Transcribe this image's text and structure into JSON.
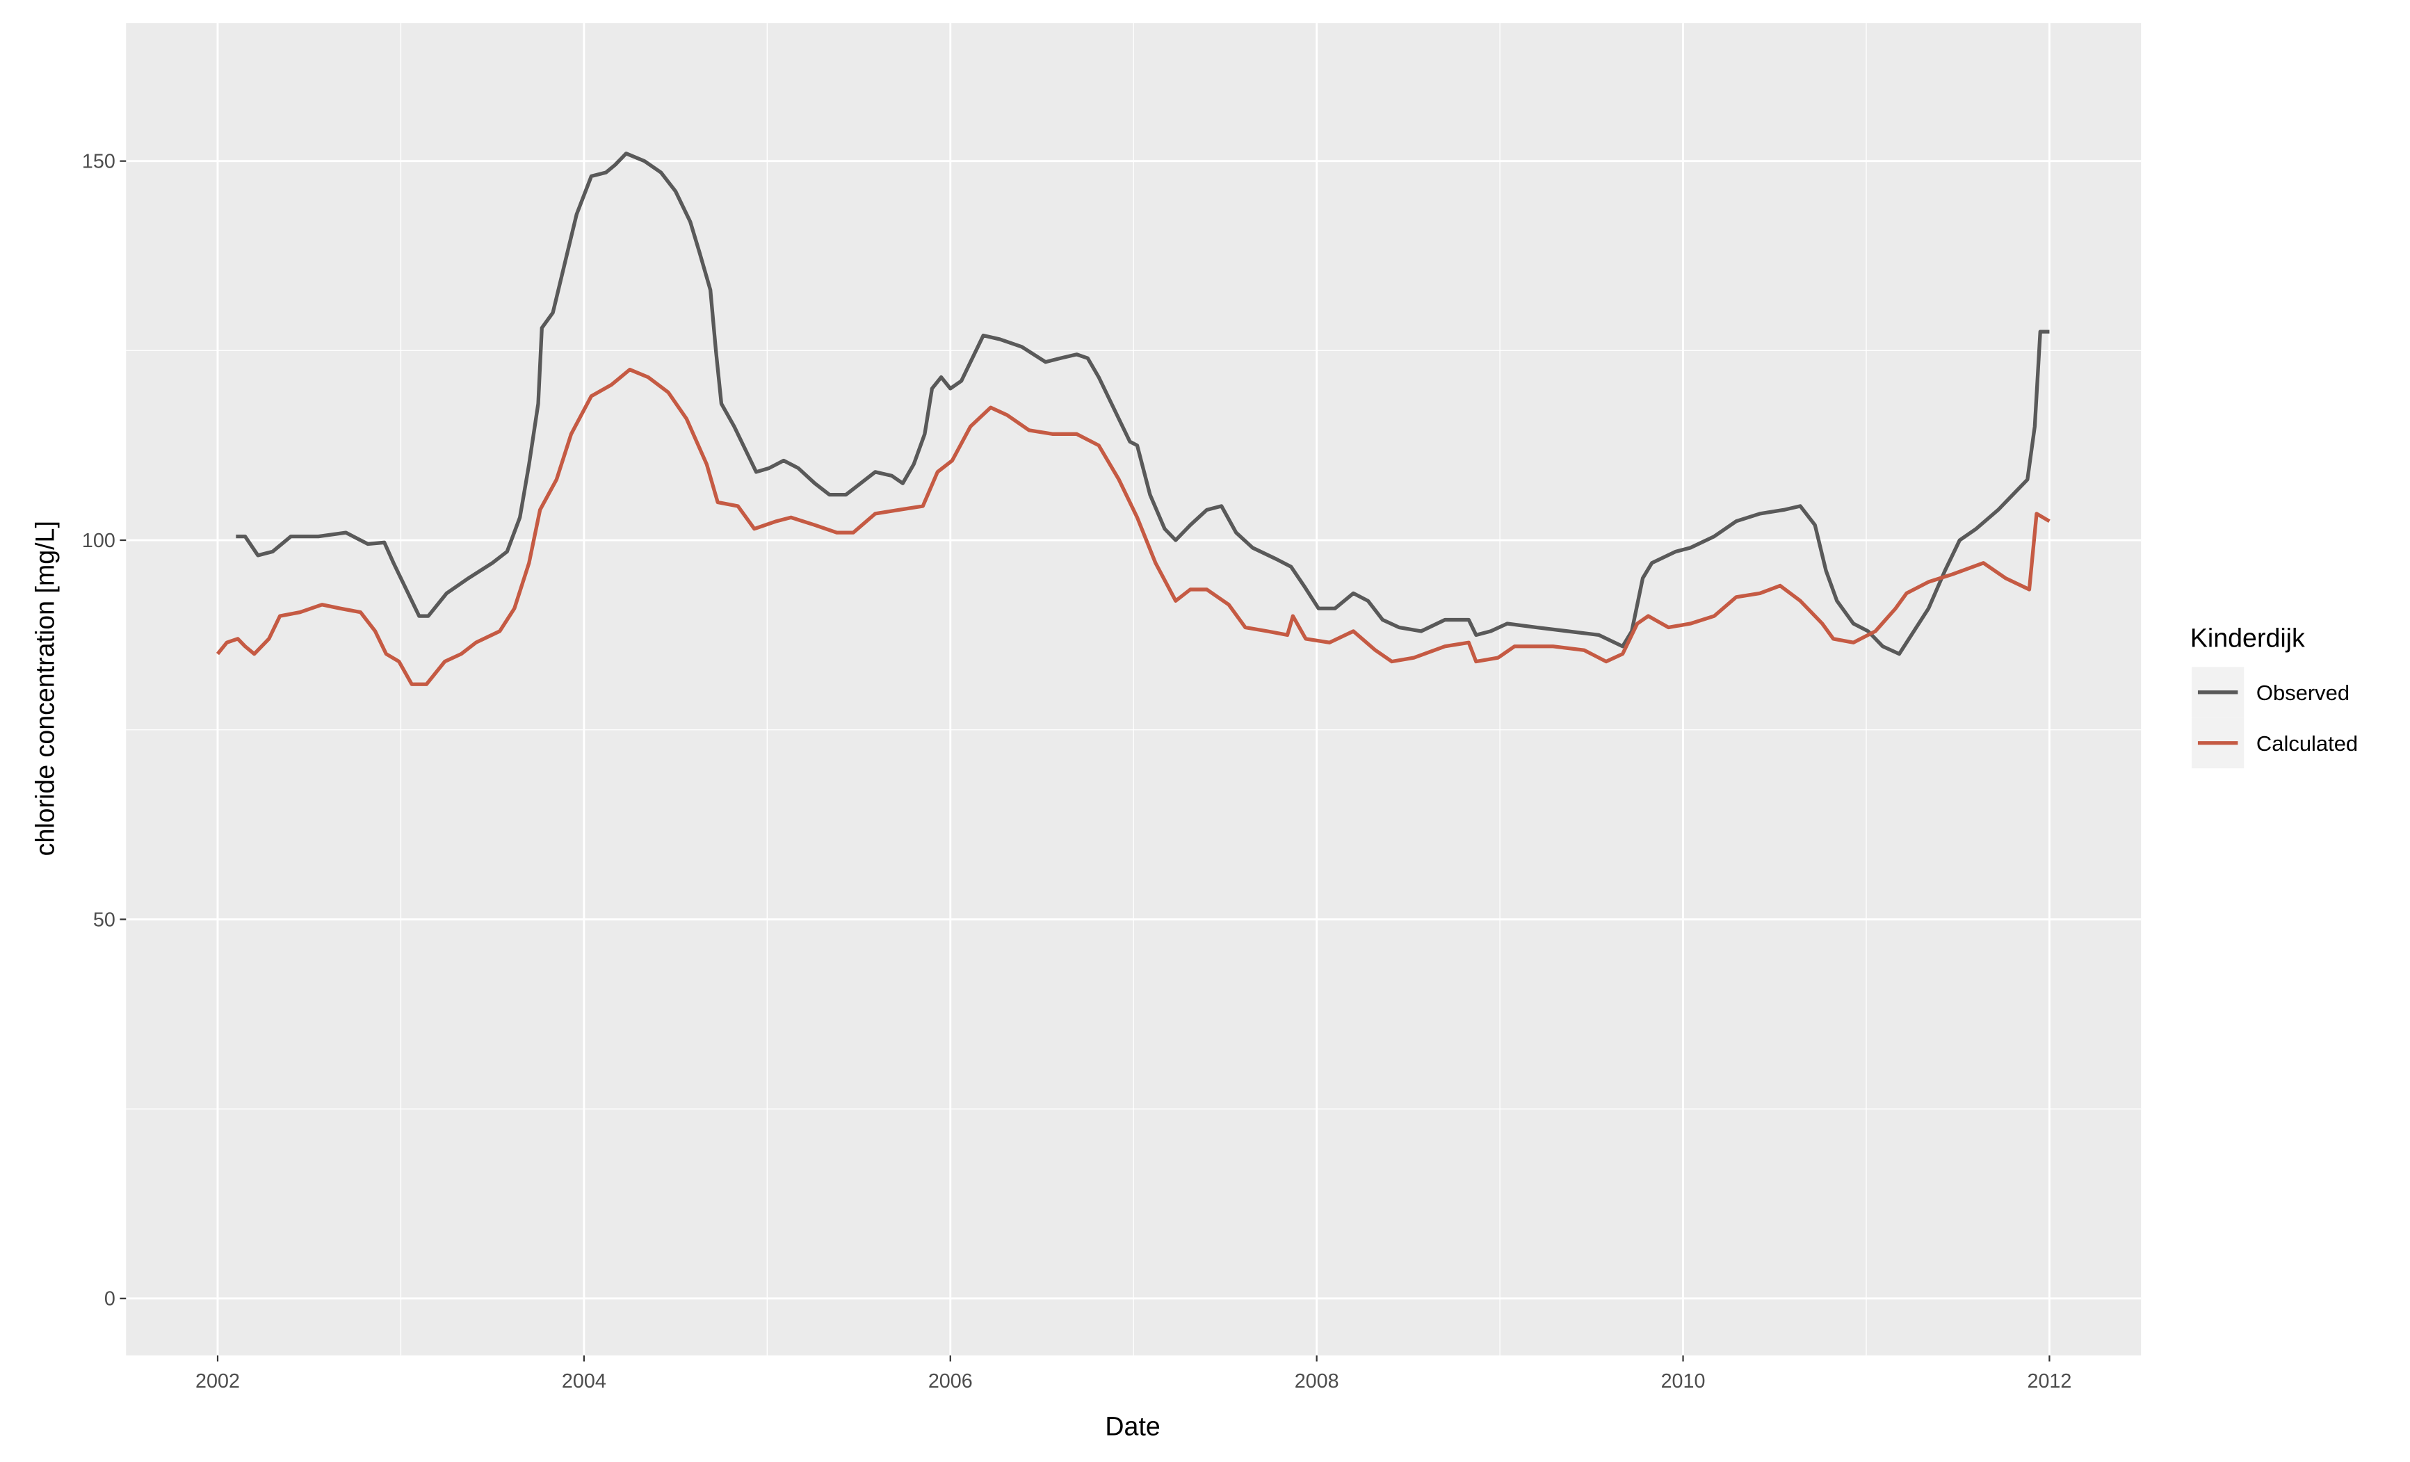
{
  "chart_data": {
    "type": "line",
    "x_label": "Date",
    "y_label": "chloride concentration [mg/L]",
    "legend_title": "Kinderdijk",
    "legend_position": "right",
    "grid": true,
    "background": "#ebebeb",
    "xlim": [
      2001.5,
      2012.5
    ],
    "ylim": [
      -7.5,
      168.2
    ],
    "xticks": [
      2002,
      2004,
      2006,
      2008,
      2010,
      2012
    ],
    "x_minor_ticks": [
      2003,
      2005,
      2007,
      2009,
      2011
    ],
    "yticks": [
      0,
      50,
      100,
      150
    ],
    "y_minor_ticks": [
      25,
      75,
      125
    ],
    "series": [
      {
        "name": "Observed",
        "color": "#595959",
        "x": [
          2002.1,
          2002.15,
          2002.22,
          2002.3,
          2002.4,
          2002.55,
          2002.7,
          2002.82,
          2002.91,
          2002.96,
          2003.02,
          2003.06,
          2003.1,
          2003.15,
          2003.25,
          2003.37,
          2003.5,
          2003.58,
          2003.65,
          2003.7,
          2003.75,
          2003.77,
          2003.83,
          2003.91,
          2003.96,
          2004.04,
          2004.12,
          2004.17,
          2004.23,
          2004.33,
          2004.42,
          2004.5,
          2004.58,
          2004.63,
          2004.69,
          2004.72,
          2004.75,
          2004.82,
          2004.88,
          2004.94,
          2005.01,
          2005.09,
          2005.17,
          2005.26,
          2005.34,
          2005.43,
          2005.51,
          2005.59,
          2005.68,
          2005.74,
          2005.8,
          2005.86,
          2005.9,
          2005.95,
          2006.0,
          2006.06,
          2006.11,
          2006.18,
          2006.27,
          2006.39,
          2006.52,
          2006.6,
          2006.69,
          2006.75,
          2006.81,
          2006.9,
          2006.98,
          2007.02,
          2007.09,
          2007.17,
          2007.23,
          2007.31,
          2007.4,
          2007.48,
          2007.56,
          2007.65,
          2007.78,
          2007.86,
          2007.93,
          2008.01,
          2008.1,
          2008.2,
          2008.28,
          2008.36,
          2008.45,
          2008.57,
          2008.7,
          2008.83,
          2008.87,
          2008.95,
          2009.04,
          2009.2,
          2009.37,
          2009.54,
          2009.67,
          2009.72,
          2009.78,
          2009.83,
          2009.96,
          2010.04,
          2010.17,
          2010.29,
          2010.42,
          2010.55,
          2010.64,
          2010.72,
          2010.78,
          2010.84,
          2010.93,
          2011.01,
          2011.09,
          2011.18,
          2011.26,
          2011.34,
          2011.43,
          2011.51,
          2011.6,
          2011.72,
          2011.8,
          2011.88,
          2011.92,
          2011.95,
          2012.0
        ],
        "values": [
          100.5,
          100.5,
          98,
          98.5,
          100.5,
          100.5,
          101,
          99.5,
          99.7,
          97,
          94,
          92,
          90,
          90,
          93,
          95,
          97,
          98.5,
          103,
          110,
          118,
          128,
          130,
          138,
          143,
          148,
          148.5,
          149.5,
          151,
          150,
          148.5,
          146,
          142,
          138,
          133,
          125,
          118,
          115,
          112,
          109,
          109.5,
          110.5,
          109.5,
          107.5,
          106,
          106,
          107.5,
          109,
          108.5,
          107.5,
          110,
          114,
          120,
          121.5,
          120,
          121,
          123.5,
          127,
          126.5,
          125.5,
          123.5,
          124,
          124.5,
          124,
          121.5,
          117,
          113,
          112.5,
          106,
          101.5,
          100,
          102,
          104,
          104.5,
          101,
          99,
          97.5,
          96.5,
          94,
          91,
          91,
          93,
          92,
          89.5,
          88.5,
          88,
          89.5,
          89.5,
          87.5,
          88,
          89,
          88.5,
          88,
          87.5,
          86,
          88,
          95,
          97,
          98.5,
          99,
          100.5,
          102.5,
          103.5,
          104,
          104.5,
          102,
          96,
          92,
          89,
          88,
          86,
          85,
          88,
          91,
          96,
          100,
          101.5,
          104,
          106,
          108,
          115,
          127.5,
          127.5
        ]
      },
      {
        "name": "Calculated",
        "color": "#c55a43",
        "x": [
          2002.0,
          2002.05,
          2002.11,
          2002.15,
          2002.2,
          2002.28,
          2002.34,
          2002.45,
          2002.57,
          2002.67,
          2002.78,
          2002.86,
          2002.92,
          2002.99,
          2003.06,
          2003.14,
          2003.24,
          2003.33,
          2003.41,
          2003.54,
          2003.62,
          2003.7,
          2003.76,
          2003.85,
          2003.93,
          2004.04,
          2004.15,
          2004.25,
          2004.35,
          2004.46,
          2004.56,
          2004.67,
          2004.73,
          2004.84,
          2004.93,
          2005.05,
          2005.13,
          2005.26,
          2005.38,
          2005.47,
          2005.59,
          2005.72,
          2005.85,
          2005.93,
          2006.01,
          2006.11,
          2006.22,
          2006.31,
          2006.43,
          2006.56,
          2006.69,
          2006.81,
          2006.92,
          2007.02,
          2007.12,
          2007.23,
          2007.31,
          2007.4,
          2007.52,
          2007.61,
          2007.73,
          2007.84,
          2007.87,
          2007.94,
          2008.07,
          2008.2,
          2008.32,
          2008.41,
          2008.53,
          2008.7,
          2008.83,
          2008.87,
          2008.99,
          2009.08,
          2009.29,
          2009.46,
          2009.58,
          2009.67,
          2009.75,
          2009.81,
          2009.92,
          2010.04,
          2010.17,
          2010.29,
          2010.42,
          2010.53,
          2010.64,
          2010.76,
          2010.82,
          2010.93,
          2011.05,
          2011.16,
          2011.22,
          2011.34,
          2011.47,
          2011.64,
          2011.76,
          2011.89,
          2011.93,
          2012.0
        ],
        "values": [
          85,
          86.5,
          87,
          86,
          85,
          87,
          90,
          90.5,
          91.5,
          91,
          90.5,
          88,
          85,
          84,
          81,
          81,
          84,
          85,
          86.5,
          88,
          91,
          97,
          104,
          108,
          114,
          119,
          120.5,
          122.5,
          121.5,
          119.5,
          116,
          110,
          105,
          104.5,
          101.5,
          102.5,
          103,
          102,
          101,
          101,
          103.5,
          104,
          104.5,
          109,
          110.5,
          115,
          117.5,
          116.5,
          114.5,
          114,
          114,
          112.5,
          108,
          103,
          97,
          92,
          93.5,
          93.5,
          91.5,
          88.5,
          88,
          87.5,
          90,
          87,
          86.5,
          88,
          85.5,
          84,
          84.5,
          86,
          86.5,
          84,
          84.5,
          86,
          86,
          85.5,
          84,
          85,
          89,
          90,
          88.5,
          89,
          90,
          92.5,
          93,
          94,
          92,
          89,
          87,
          86.5,
          88,
          91,
          93,
          94.5,
          95.5,
          97,
          95,
          93.5,
          103.5,
          102.5
        ]
      }
    ]
  }
}
